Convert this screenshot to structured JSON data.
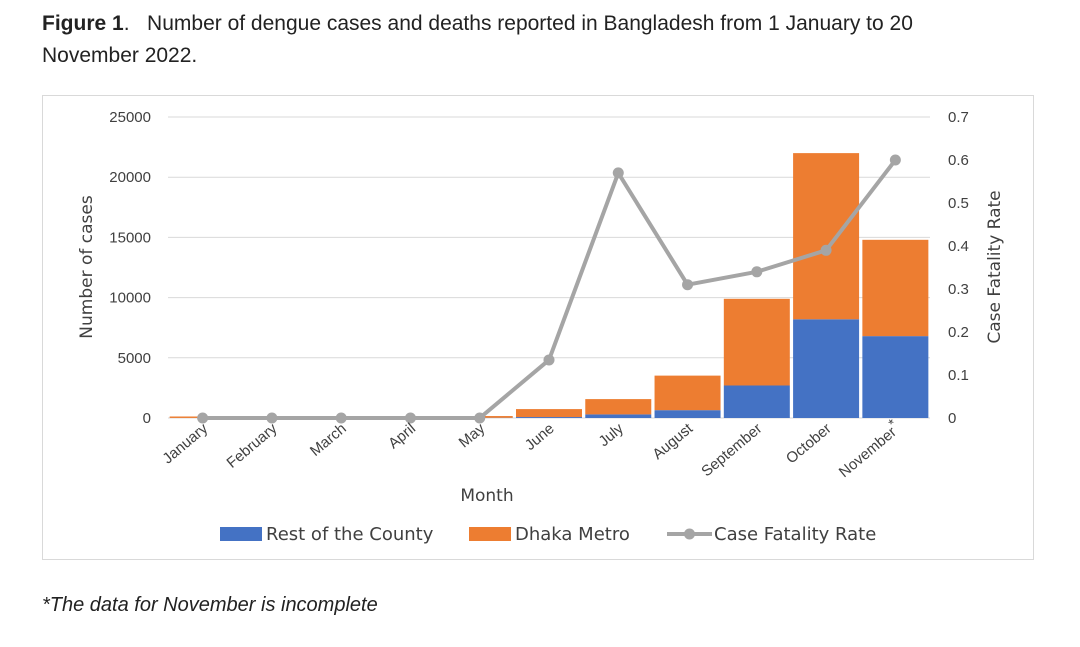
{
  "caption": {
    "label": "Figure 1",
    "separator": ".",
    "text": "Number of dengue cases and deaths reported in Bangladesh from 1 January to 20 November 2022."
  },
  "footnote": "*The data for November is incomplete",
  "colors": {
    "rest": "#4472c4",
    "dhaka": "#ed7d31",
    "cfr": "#a5a5a5",
    "grid": "#d9d9d9",
    "text": "#404040"
  },
  "chart_data": {
    "type": "bar",
    "stacked": true,
    "categories": [
      "January",
      "February",
      "March",
      "April",
      "May",
      "June",
      "July",
      "August",
      "September",
      "October",
      "November"
    ],
    "category_marker": {
      "November": "*"
    },
    "series": [
      {
        "name": "Rest of the County",
        "type": "bar",
        "axis": "left",
        "values": [
          5,
          2,
          2,
          3,
          20,
          80,
          300,
          650,
          2700,
          8200,
          6800
        ]
      },
      {
        "name": "Dhaka Metro",
        "type": "bar",
        "axis": "left",
        "values": [
          120,
          20,
          18,
          20,
          143,
          660,
          1270,
          2870,
          7200,
          13800,
          8000
        ]
      },
      {
        "name": "Case Fatality Rate",
        "type": "line",
        "axis": "right",
        "values": [
          0,
          0,
          0,
          0,
          0,
          0.135,
          0.57,
          0.31,
          0.34,
          0.39,
          0.6
        ]
      }
    ],
    "xlabel": "Month",
    "ylabel": "Number of cases",
    "y2label": "Case Fatality Rate",
    "ylim": [
      0,
      25000
    ],
    "yticks": [
      0,
      5000,
      10000,
      15000,
      20000,
      25000
    ],
    "y2lim": [
      0,
      0.7
    ],
    "y2ticks": [
      "0",
      "0.1",
      "0.2",
      "0.3",
      "0.4",
      "0.5",
      "0.6",
      "0.7"
    ],
    "grid": true,
    "legend": "bottom"
  }
}
